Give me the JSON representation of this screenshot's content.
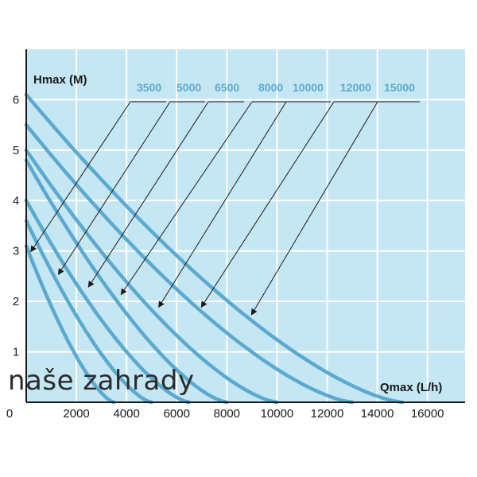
{
  "watermark": "naše zahrady",
  "colors": {
    "plot_bg": "#c5e6f3",
    "grid": "#ffffff",
    "curve": "#5ca9cf",
    "label": "#5ca9cf",
    "axis": "#1a1a1a",
    "text": "#1a1a1a"
  },
  "chart_data": {
    "type": "line",
    "title": "",
    "xlabel": "Qmax (L/h)",
    "ylabel": "Hmax (M)",
    "xlim": [
      0,
      17500
    ],
    "ylim": [
      0,
      7
    ],
    "x_ticks": [
      "0",
      "2000",
      "4000",
      "6000",
      "8000",
      "10000",
      "12000",
      "14000",
      "16000"
    ],
    "x_tick_values": [
      0,
      2000,
      4000,
      6000,
      8000,
      10000,
      12000,
      14000,
      16000
    ],
    "y_ticks": [
      "1",
      "2",
      "3",
      "4",
      "5",
      "6"
    ],
    "y_tick_values": [
      1,
      2,
      3,
      4,
      5,
      6
    ],
    "grid": true,
    "legend": "series labels along top with leader arrows to curves",
    "series": [
      {
        "name": "3500",
        "label": "3500",
        "hmax": 3.1,
        "qmax": 3500,
        "arrow_target": [
          200,
          3.0
        ]
      },
      {
        "name": "5000",
        "label": "5000",
        "hmax": 3.6,
        "qmax": 5000,
        "arrow_target": [
          1300,
          2.55
        ]
      },
      {
        "name": "6500",
        "label": "6500",
        "hmax": 4.0,
        "qmax": 6500,
        "arrow_target": [
          2500,
          2.3
        ]
      },
      {
        "name": "8000",
        "label": "8000",
        "hmax": 4.8,
        "qmax": 8000,
        "arrow_target": [
          3800,
          2.15
        ]
      },
      {
        "name": "10000",
        "label": "10000",
        "hmax": 5.0,
        "qmax": 10000,
        "arrow_target": [
          5300,
          1.9
        ]
      },
      {
        "name": "12000",
        "label": "12000",
        "hmax": 5.5,
        "qmax": 13000,
        "arrow_target": [
          7000,
          1.9
        ]
      },
      {
        "name": "15000",
        "label": "15000",
        "hmax": 6.1,
        "qmax": 15000,
        "arrow_target": [
          9000,
          1.75
        ]
      }
    ]
  }
}
